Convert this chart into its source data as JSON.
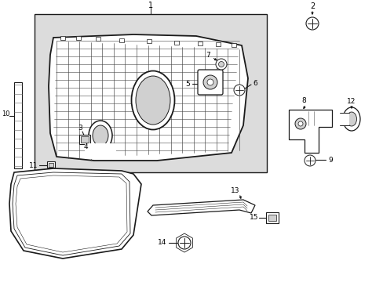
{
  "background_color": "#ffffff",
  "fig_width": 4.89,
  "fig_height": 3.6,
  "dpi": 100,
  "line_color": "#1a1a1a",
  "text_color": "#000000",
  "shaded_bg": "#dcdcdc",
  "grille_bg": "#d0d0d0"
}
